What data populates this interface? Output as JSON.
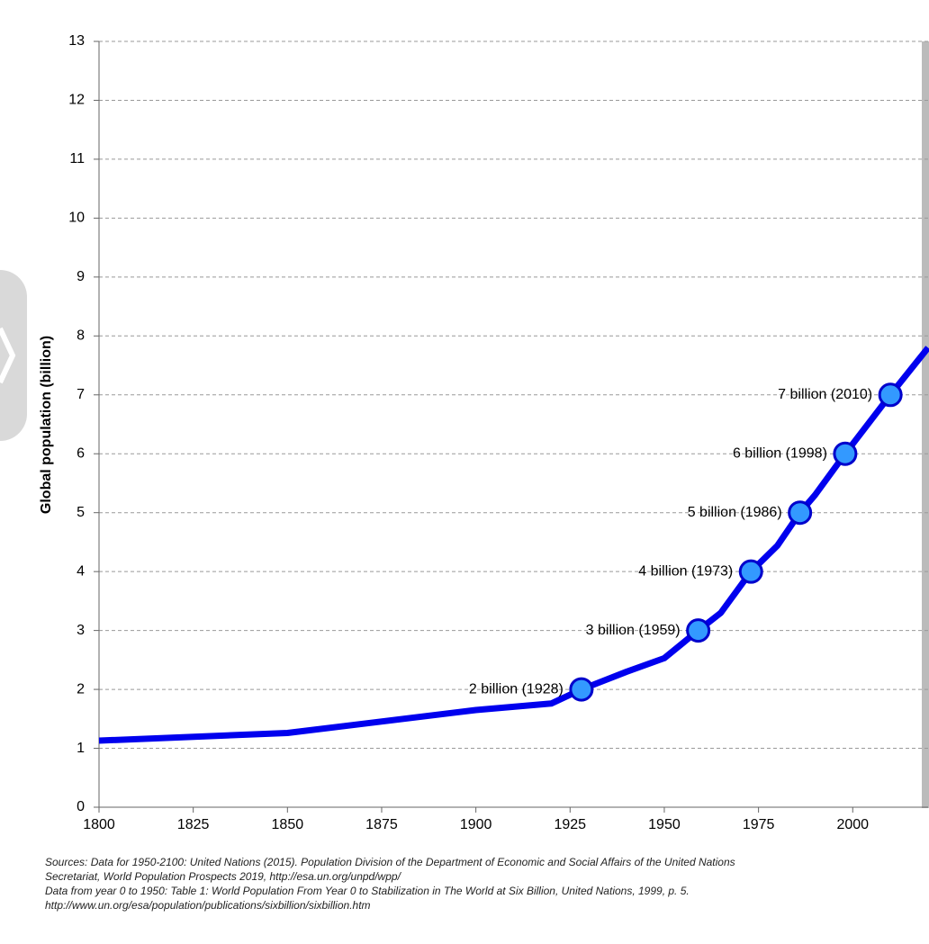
{
  "chart_data": {
    "type": "line",
    "y_label": "Global population (billion)",
    "x": [
      1800,
      1850,
      1900,
      1920,
      1928,
      1940,
      1950,
      1959,
      1965,
      1973,
      1980,
      1986,
      1990,
      1998,
      2010,
      2020
    ],
    "series": [
      {
        "name": "Global population",
        "color": "#0000ee",
        "values": [
          1.13,
          1.26,
          1.65,
          1.76,
          2.0,
          2.3,
          2.53,
          3.0,
          3.3,
          4.0,
          4.44,
          5.0,
          5.3,
          6.0,
          7.0,
          7.8
        ]
      }
    ],
    "milestones": {
      "color": "#3399ff",
      "x": [
        1928,
        1959,
        1973,
        1986,
        1998,
        2010
      ],
      "values": [
        2,
        3,
        4,
        5,
        6,
        7
      ],
      "labels": [
        "2 billion (1928)",
        "3 billion (1959)",
        "4 billion (1973)",
        "5 billion (1986)",
        "6 billion (1998)",
        "7 billion (2010)"
      ]
    },
    "xlim": [
      1800,
      2020
    ],
    "xticks": [
      1800,
      1825,
      1850,
      1875,
      1900,
      1925,
      1950,
      1975,
      2000
    ],
    "ylim": [
      0,
      13
    ],
    "yticks": [
      0,
      1,
      2,
      3,
      4,
      5,
      6,
      7,
      8,
      9,
      10,
      11,
      12,
      13
    ],
    "grid": true,
    "sources": [
      "Sources: Data for 1950-2100: United Nations (2015). Population Division of the Department of Economic and Social Affairs of the United Nations",
      "Secretariat,  World Population Prospects 2019, http://esa.un.org/unpd/wpp/",
      "Data from year 0 to 1950: Table 1: World Population From Year 0 to Stabilization in The World at Six Billion, United Nations, 1999, p. 5.",
      "http://www.un.org/esa/population/publications/sixbillion/sixbillion.htm"
    ]
  }
}
